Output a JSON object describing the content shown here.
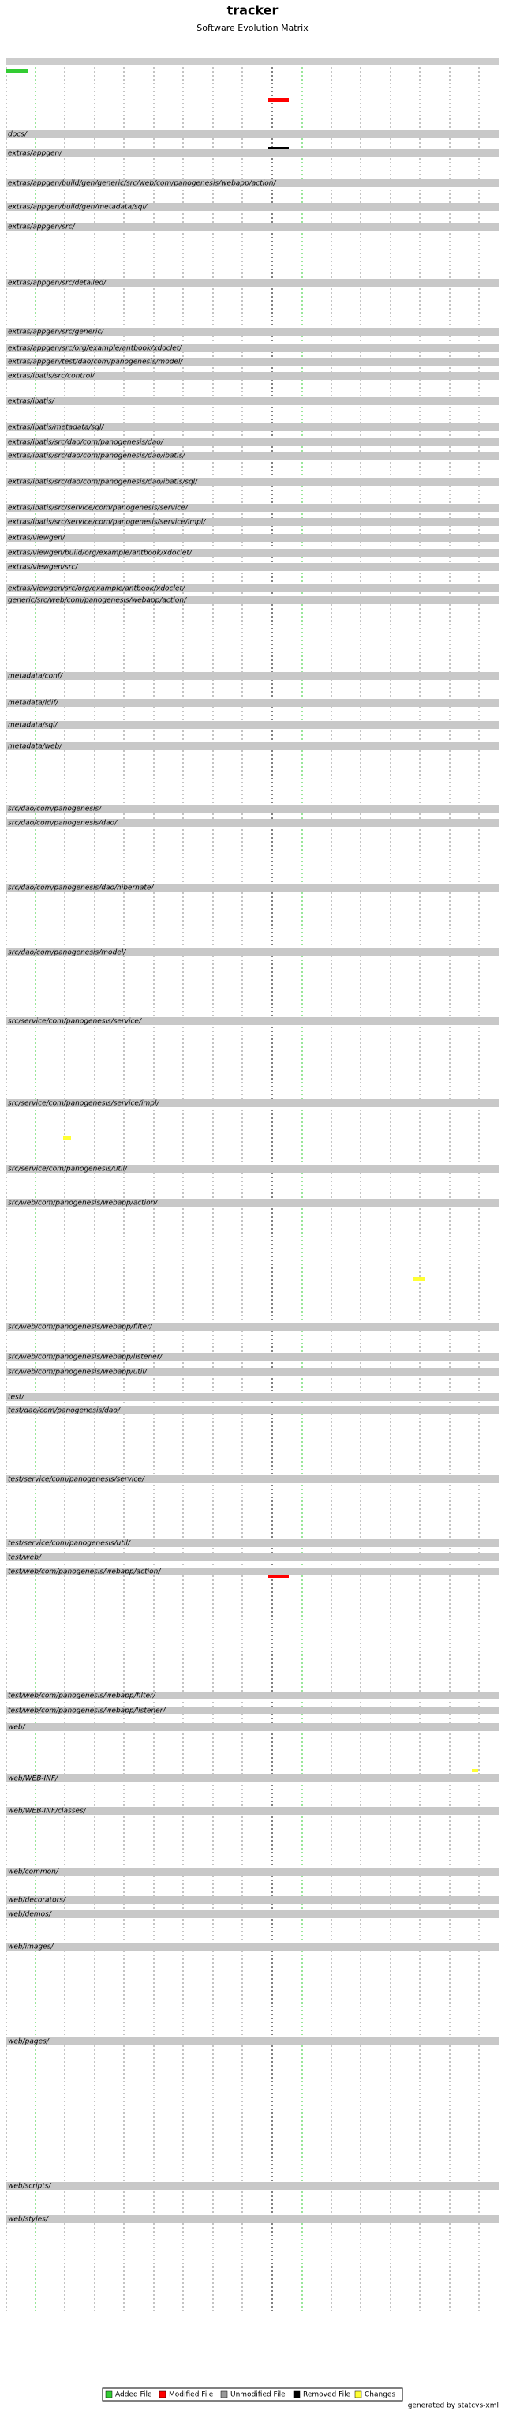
{
  "header": {
    "title": "tracker",
    "subtitle": "Software Evolution Matrix"
  },
  "directories": [
    "docs/",
    "extras/appgen/",
    "extras/appgen/build/gen/generic/src/web/com/panogenesis/webapp/action/",
    "extras/appgen/build/gen/metadata/sql/",
    "extras/appgen/src/",
    "extras/appgen/src/detailed/",
    "extras/appgen/src/generic/",
    "extras/appgen/src/org/example/antbook/xdoclet/",
    "extras/appgen/test/dao/com/panogenesis/model/",
    "extras/ibatis/src/control/",
    "extras/ibatis/",
    "extras/ibatis/metadata/sql/",
    "extras/ibatis/src/dao/com/panogenesis/dao/",
    "extras/ibatis/src/dao/com/panogenesis/dao/ibatis/",
    "extras/ibatis/src/dao/com/panogenesis/dao/ibatis/sql/",
    "extras/ibatis/src/service/com/panogenesis/service/",
    "extras/ibatis/src/service/com/panogenesis/service/impl/",
    "extras/viewgen/",
    "extras/viewgen/build/org/example/antbook/xdoclet/",
    "extras/viewgen/src/",
    "extras/viewgen/src/org/example/antbook/xdoclet/",
    "generic/src/web/com/panogenesis/webapp/action/",
    "metadata/conf/",
    "metadata/ldif/",
    "metadata/sql/",
    "metadata/web/",
    "src/dao/com/panogenesis/",
    "src/dao/com/panogenesis/dao/",
    "src/dao/com/panogenesis/dao/hibernate/",
    "src/dao/com/panogenesis/model/",
    "src/service/com/panogenesis/service/",
    "src/service/com/panogenesis/service/impl/",
    "src/service/com/panogenesis/util/",
    "src/web/com/panogenesis/webapp/action/",
    "src/web/com/panogenesis/webapp/filter/",
    "src/web/com/panogenesis/webapp/listener/",
    "src/web/com/panogenesis/webapp/util/",
    "test/",
    "test/dao/com/panogenesis/dao/",
    "test/service/com/panogenesis/service/",
    "test/service/com/panogenesis/util/",
    "test/web/",
    "test/web/com/panogenesis/webapp/action/",
    "test/web/com/panogenesis/webapp/filter/",
    "test/web/com/panogenesis/webapp/listener/",
    "web/",
    "web/WEB-INF/",
    "web/WEB-INF/classes/",
    "web/common/",
    "web/decorators/",
    "web/demos/",
    "web/images/",
    "web/pages/",
    "web/scripts/",
    "web/styles/"
  ],
  "legend": [
    "Added File",
    "Modified File",
    "Unmodified File",
    "Removed File",
    "Changes"
  ],
  "footer": "generated by statcvs-xml"
}
